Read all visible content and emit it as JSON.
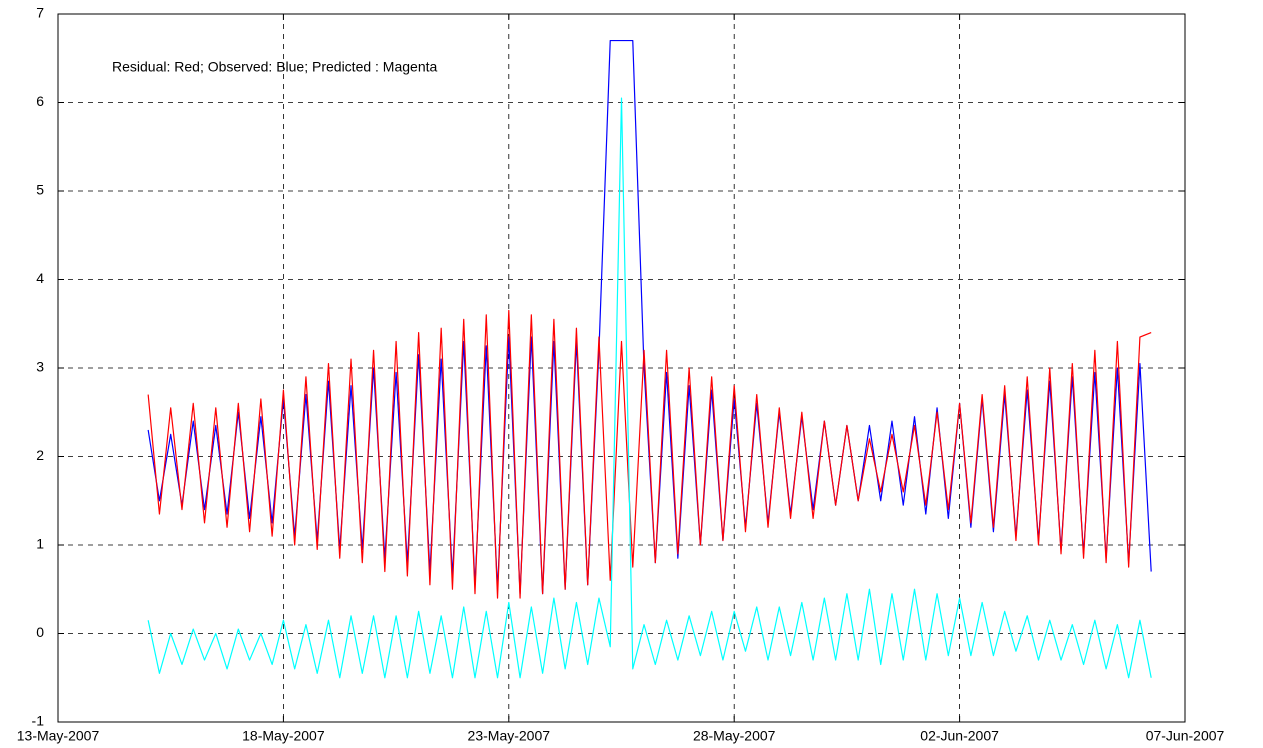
{
  "chart_data": {
    "type": "line",
    "annotation": "Residual: Red; Observed: Blue; Predicted : Magenta",
    "x": [
      15,
      15.25,
      15.5,
      15.75,
      16,
      16.25,
      16.5,
      16.75,
      17,
      17.25,
      17.5,
      17.75,
      18,
      18.25,
      18.5,
      18.75,
      19,
      19.25,
      19.5,
      19.75,
      20,
      20.25,
      20.5,
      20.75,
      21,
      21.25,
      21.5,
      21.75,
      22,
      22.25,
      22.5,
      22.75,
      23,
      23.25,
      23.5,
      23.75,
      24,
      24.25,
      24.5,
      24.75,
      25,
      25.25,
      25.5,
      25.75,
      26,
      26.25,
      26.5,
      26.75,
      27,
      27.25,
      27.5,
      27.75,
      28,
      28.25,
      28.5,
      28.75,
      29,
      29.25,
      29.5,
      29.75,
      30,
      30.25,
      30.5,
      30.75,
      31,
      31.25,
      31.5,
      31.75,
      32,
      32.25,
      32.5,
      32.75,
      33,
      33.25,
      33.5,
      33.75,
      34,
      34.25,
      34.5,
      34.75,
      35,
      35.25,
      35.5,
      35.75,
      36,
      36.25,
      36.5,
      36.75,
      37,
      37.25
    ],
    "series": [
      {
        "color": "#0000ff",
        "values": [
          2.3,
          1.5,
          2.25,
          1.45,
          2.4,
          1.4,
          2.35,
          1.35,
          2.5,
          1.3,
          2.45,
          1.25,
          2.65,
          1.1,
          2.7,
          1.05,
          2.85,
          0.95,
          2.8,
          0.95,
          3.0,
          0.85,
          2.95,
          0.8,
          3.15,
          0.7,
          3.1,
          0.65,
          3.3,
          0.55,
          3.25,
          0.5,
          3.35,
          0.45,
          3.35,
          0.45,
          3.3,
          0.5,
          3.3,
          0.55,
          3.2,
          6.7,
          6.7,
          6.7,
          3.0,
          0.8,
          2.95,
          0.85,
          2.8,
          1.0,
          2.75,
          1.05,
          2.65,
          1.2,
          2.6,
          1.25,
          2.5,
          1.35,
          2.45,
          1.4,
          2.4,
          1.45,
          2.35,
          1.5,
          2.35,
          1.5,
          2.4,
          1.45,
          2.45,
          1.35,
          2.55,
          1.3,
          2.6,
          1.2,
          2.65,
          1.15,
          2.7,
          1.1,
          2.75,
          1.05,
          2.85,
          0.95,
          2.9,
          0.9,
          2.95,
          0.85,
          3.0,
          0.8,
          3.05,
          0.7
        ]
      },
      {
        "color": "#ff0000",
        "values": [
          2.7,
          1.35,
          2.55,
          1.4,
          2.6,
          1.25,
          2.55,
          1.2,
          2.6,
          1.15,
          2.65,
          1.1,
          2.75,
          1.0,
          2.9,
          0.95,
          3.05,
          0.85,
          3.1,
          0.8,
          3.2,
          0.7,
          3.3,
          0.65,
          3.4,
          0.55,
          3.45,
          0.5,
          3.55,
          0.45,
          3.6,
          0.4,
          3.65,
          0.4,
          3.6,
          0.45,
          3.55,
          0.5,
          3.45,
          0.55,
          3.35,
          0.6,
          3.3,
          0.75,
          3.2,
          0.8,
          3.2,
          0.9,
          3.0,
          1.0,
          2.9,
          1.05,
          2.8,
          1.15,
          2.7,
          1.2,
          2.55,
          1.3,
          2.5,
          1.3,
          2.4,
          1.45,
          2.35,
          1.5,
          2.2,
          1.6,
          2.25,
          1.6,
          2.35,
          1.45,
          2.5,
          1.4,
          2.6,
          1.25,
          2.7,
          1.2,
          2.8,
          1.05,
          2.9,
          1.0,
          3.0,
          0.9,
          3.05,
          0.85,
          3.2,
          0.8,
          3.3,
          0.75,
          3.35,
          3.4
        ]
      },
      {
        "color": "#00ffff",
        "values": [
          0.15,
          -0.45,
          0.0,
          -0.35,
          0.05,
          -0.3,
          0.0,
          -0.4,
          0.05,
          -0.3,
          0.0,
          -0.35,
          0.15,
          -0.4,
          0.1,
          -0.45,
          0.15,
          -0.5,
          0.2,
          -0.45,
          0.2,
          -0.5,
          0.2,
          -0.5,
          0.25,
          -0.45,
          0.2,
          -0.5,
          0.3,
          -0.5,
          0.25,
          -0.5,
          0.35,
          -0.5,
          0.3,
          -0.45,
          0.4,
          -0.4,
          0.35,
          -0.35,
          0.4,
          -0.15,
          6.05,
          -0.4,
          0.1,
          -0.35,
          0.15,
          -0.3,
          0.2,
          -0.25,
          0.25,
          -0.3,
          0.25,
          -0.2,
          0.3,
          -0.3,
          0.3,
          -0.25,
          0.35,
          -0.3,
          0.4,
          -0.3,
          0.45,
          -0.3,
          0.5,
          -0.35,
          0.45,
          -0.3,
          0.5,
          -0.3,
          0.45,
          -0.25,
          0.4,
          -0.25,
          0.35,
          -0.25,
          0.25,
          -0.2,
          0.2,
          -0.3,
          0.15,
          -0.3,
          0.1,
          -0.35,
          0.15,
          -0.4,
          0.1,
          -0.5,
          0.15,
          -0.5
        ]
      }
    ],
    "xlim": [
      13,
      38
    ],
    "xticks": [
      {
        "value": 13,
        "label": "13-May-2007"
      },
      {
        "value": 18,
        "label": "18-May-2007"
      },
      {
        "value": 23,
        "label": "23-May-2007"
      },
      {
        "value": 28,
        "label": "28-May-2007"
      },
      {
        "value": 33,
        "label": "02-Jun-2007"
      },
      {
        "value": 38,
        "label": "07-Jun-2007"
      }
    ],
    "ylim": [
      -1,
      7
    ],
    "yticks": [
      -1,
      0,
      1,
      2,
      3,
      4,
      5,
      6,
      7
    ],
    "grid": true
  }
}
